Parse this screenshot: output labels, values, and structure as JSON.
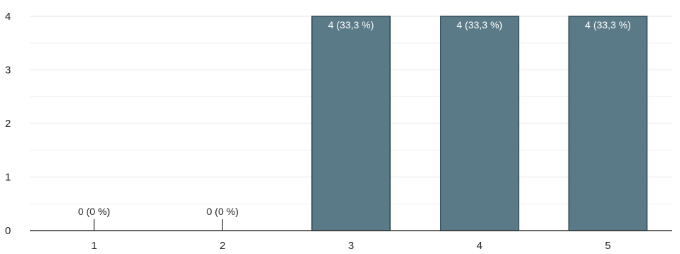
{
  "chart_data": {
    "type": "bar",
    "categories": [
      "1",
      "2",
      "3",
      "4",
      "5"
    ],
    "values": [
      0,
      0,
      4,
      4,
      4
    ],
    "data_labels": [
      "0 (0 %)",
      "0 (0 %)",
      "4 (33,3 %)",
      "4 (33,3 %)",
      "4 (33,3 %)"
    ],
    "y_ticks": [
      "0",
      "1",
      "2",
      "3",
      "4"
    ],
    "ylim": [
      0,
      4
    ],
    "title": "",
    "xlabel": "",
    "ylabel": "",
    "grid": true,
    "legend": "none",
    "bar_color": "#5b7a87",
    "bar_border_color": "#2e4a55",
    "gridline_color": "#e6e6e6",
    "axis_color": "#333333"
  }
}
